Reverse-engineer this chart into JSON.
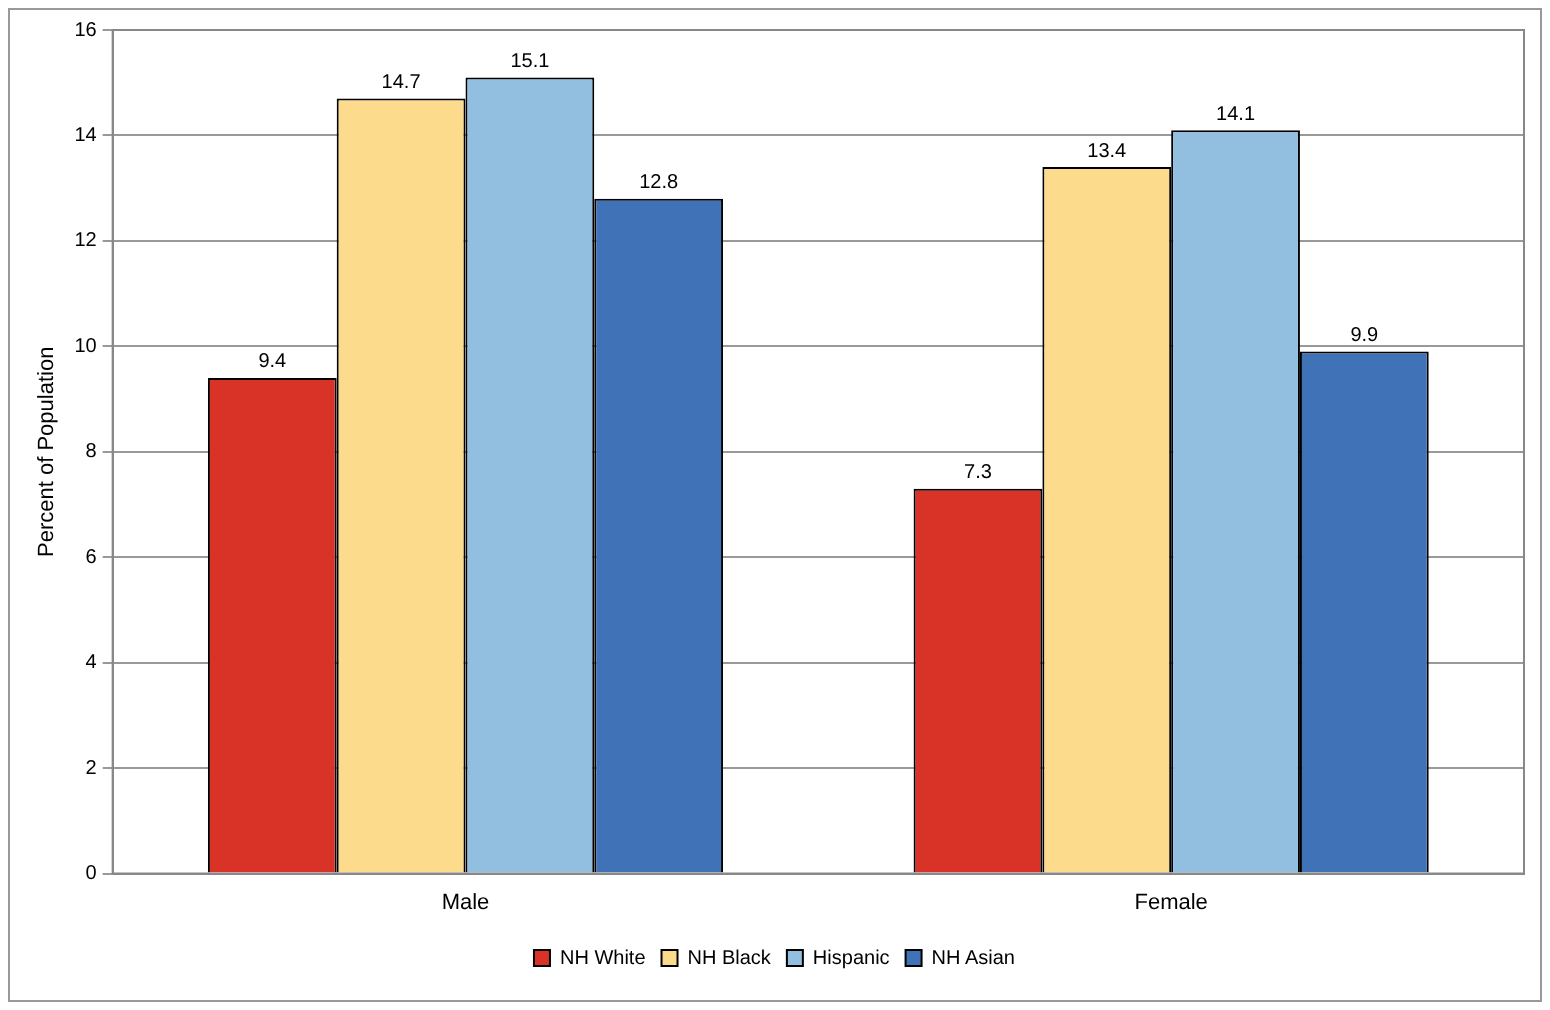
{
  "chart_data": {
    "type": "bar",
    "ylabel": "Percent of Population",
    "categories": [
      "Male",
      "Female"
    ],
    "series": [
      {
        "name": "NH White",
        "color": "#d93226",
        "values": [
          9.4,
          7.3
        ]
      },
      {
        "name": "NH Black",
        "color": "#fcdc8c",
        "values": [
          14.7,
          13.4
        ]
      },
      {
        "name": "Hispanic",
        "color": "#92bfe0",
        "values": [
          15.1,
          14.1
        ]
      },
      {
        "name": "NH Asian",
        "color": "#4072b8",
        "values": [
          12.8,
          9.9
        ]
      }
    ],
    "ylim": [
      0,
      16
    ],
    "yticks": [
      0,
      2,
      4,
      6,
      8,
      10,
      12,
      14,
      16
    ],
    "grid": "y",
    "legend": "bottom",
    "data_labels": true
  }
}
